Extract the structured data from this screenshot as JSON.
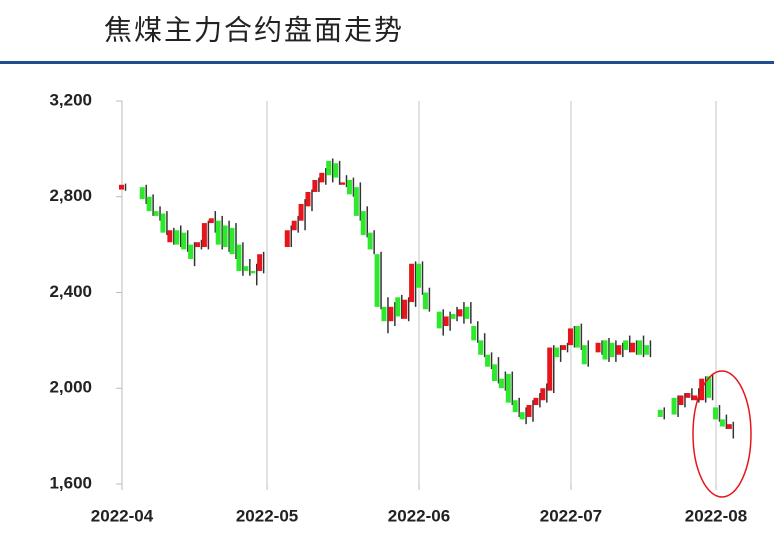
{
  "chart_data": {
    "type": "candlestick",
    "title": "焦煤主力合约盘面走势",
    "up_color": "#e8141c",
    "down_color": "#2ee82e",
    "wick_color": "#333333",
    "ylim": [
      1600,
      3200
    ],
    "yticks": [
      {
        "value": 1600,
        "label": "1,600"
      },
      {
        "value": 2000,
        "label": "2,000"
      },
      {
        "value": 2400,
        "label": "2,400"
      },
      {
        "value": 2800,
        "label": "2,800"
      },
      {
        "value": 3200,
        "label": "3,200"
      }
    ],
    "categories": [
      "2022-04",
      null,
      null,
      null,
      null,
      null,
      null,
      null,
      null,
      null,
      null,
      null,
      null,
      null,
      null,
      null,
      null,
      null,
      null,
      null,
      null,
      "2022-05",
      null,
      null,
      null,
      null,
      null,
      null,
      null,
      null,
      null,
      null,
      null,
      null,
      null,
      null,
      null,
      null,
      null,
      null,
      null,
      null,
      null,
      "2022-06",
      null,
      null,
      null,
      null,
      null,
      null,
      null,
      null,
      null,
      null,
      null,
      null,
      null,
      null,
      null,
      null,
      null,
      null,
      null,
      null,
      null,
      "2022-07",
      null,
      null,
      null,
      null,
      null,
      null,
      null,
      null,
      null,
      null,
      null,
      null,
      null,
      null,
      null,
      null,
      null,
      null,
      null,
      null,
      "2022-08",
      null,
      null
    ],
    "ohlc": [
      [
        2830,
        2855,
        2825,
        2850
      ],
      null,
      null,
      [
        2840,
        2850,
        2770,
        2790
      ],
      [
        2800,
        2810,
        2720,
        2740
      ],
      [
        2740,
        2760,
        2700,
        2720
      ],
      [
        2730,
        2740,
        2640,
        2650
      ],
      [
        2610,
        2670,
        2600,
        2660
      ],
      [
        2660,
        2680,
        2590,
        2600
      ],
      [
        2650,
        2660,
        2570,
        2580
      ],
      [
        2600,
        2610,
        2510,
        2540
      ],
      [
        2590,
        2620,
        2580,
        2610
      ],
      [
        2590,
        2700,
        2580,
        2690
      ],
      [
        2690,
        2740,
        2650,
        2710
      ],
      [
        2700,
        2720,
        2580,
        2600
      ],
      [
        2680,
        2700,
        2570,
        2590
      ],
      [
        2670,
        2690,
        2540,
        2560
      ],
      [
        2600,
        2610,
        2470,
        2490
      ],
      [
        2510,
        2540,
        2470,
        2490
      ],
      [
        2490,
        2520,
        2430,
        2480
      ],
      [
        2490,
        2570,
        2480,
        2560
      ],
      null,
      null,
      null,
      [
        2590,
        2680,
        2590,
        2660
      ],
      [
        2660,
        2720,
        2650,
        2700
      ],
      [
        2700,
        2790,
        2660,
        2770
      ],
      [
        2760,
        2830,
        2740,
        2820
      ],
      [
        2820,
        2880,
        2820,
        2870
      ],
      [
        2860,
        2920,
        2850,
        2900
      ],
      [
        2950,
        2960,
        2860,
        2890
      ],
      [
        2940,
        2950,
        2850,
        2880
      ],
      [
        2850,
        2890,
        2840,
        2860
      ],
      [
        2870,
        2880,
        2800,
        2810
      ],
      [
        2840,
        2860,
        2700,
        2720
      ],
      [
        2740,
        2760,
        2630,
        2640
      ],
      [
        2650,
        2660,
        2560,
        2580
      ],
      [
        2560,
        2570,
        2330,
        2340
      ],
      [
        2340,
        2380,
        2230,
        2280
      ],
      [
        2280,
        2360,
        2260,
        2340
      ],
      [
        2380,
        2390,
        2290,
        2300
      ],
      [
        2290,
        2380,
        2280,
        2370
      ],
      [
        2360,
        2530,
        2340,
        2520
      ],
      [
        2520,
        2530,
        2390,
        2420
      ],
      [
        2400,
        2420,
        2320,
        2330
      ],
      null,
      [
        2320,
        2330,
        2220,
        2250
      ],
      [
        2260,
        2320,
        2240,
        2300
      ],
      [
        2310,
        2340,
        2280,
        2290
      ],
      [
        2300,
        2360,
        2270,
        2330
      ],
      [
        2340,
        2360,
        2270,
        2290
      ],
      [
        2260,
        2280,
        2190,
        2200
      ],
      [
        2200,
        2230,
        2130,
        2140
      ],
      [
        2140,
        2150,
        2080,
        2090
      ],
      [
        2100,
        2130,
        2020,
        2030
      ],
      [
        2040,
        2070,
        1990,
        2000
      ],
      [
        2060,
        2070,
        1930,
        1940
      ],
      [
        1950,
        1960,
        1880,
        1900
      ],
      [
        1900,
        1920,
        1850,
        1870
      ],
      [
        1880,
        1950,
        1860,
        1930
      ],
      [
        1930,
        1980,
        1920,
        1960
      ],
      [
        1950,
        2020,
        1940,
        2000
      ],
      [
        1990,
        2180,
        1980,
        2170
      ],
      [
        2170,
        2180,
        2110,
        2130
      ],
      [
        2160,
        2190,
        2150,
        2180
      ],
      [
        2180,
        2260,
        2170,
        2250
      ],
      [
        2260,
        2270,
        2160,
        2170
      ],
      [
        2180,
        2200,
        2090,
        2100
      ],
      null,
      [
        2150,
        2200,
        2140,
        2190
      ],
      [
        2200,
        2210,
        2110,
        2120
      ],
      [
        2190,
        2200,
        2110,
        2130
      ],
      [
        2140,
        2190,
        2130,
        2180
      ],
      [
        2200,
        2220,
        2150,
        2160
      ],
      [
        2150,
        2200,
        2140,
        2190
      ],
      [
        2200,
        2220,
        2130,
        2140
      ],
      [
        2180,
        2200,
        2130,
        2140
      ],
      null,
      [
        1910,
        1920,
        1870,
        1880
      ],
      null,
      [
        1960,
        1970,
        1880,
        1890
      ],
      [
        1930,
        1980,
        1920,
        1970
      ],
      [
        1960,
        2000,
        1950,
        1980
      ],
      [
        1950,
        2000,
        1940,
        1970
      ],
      [
        1950,
        2050,
        1940,
        2040
      ],
      [
        2050,
        2060,
        1950,
        1960
      ],
      [
        1920,
        1930,
        1860,
        1870
      ],
      [
        1870,
        1890,
        1830,
        1840
      ],
      [
        1830,
        1860,
        1790,
        1850
      ]
    ]
  }
}
